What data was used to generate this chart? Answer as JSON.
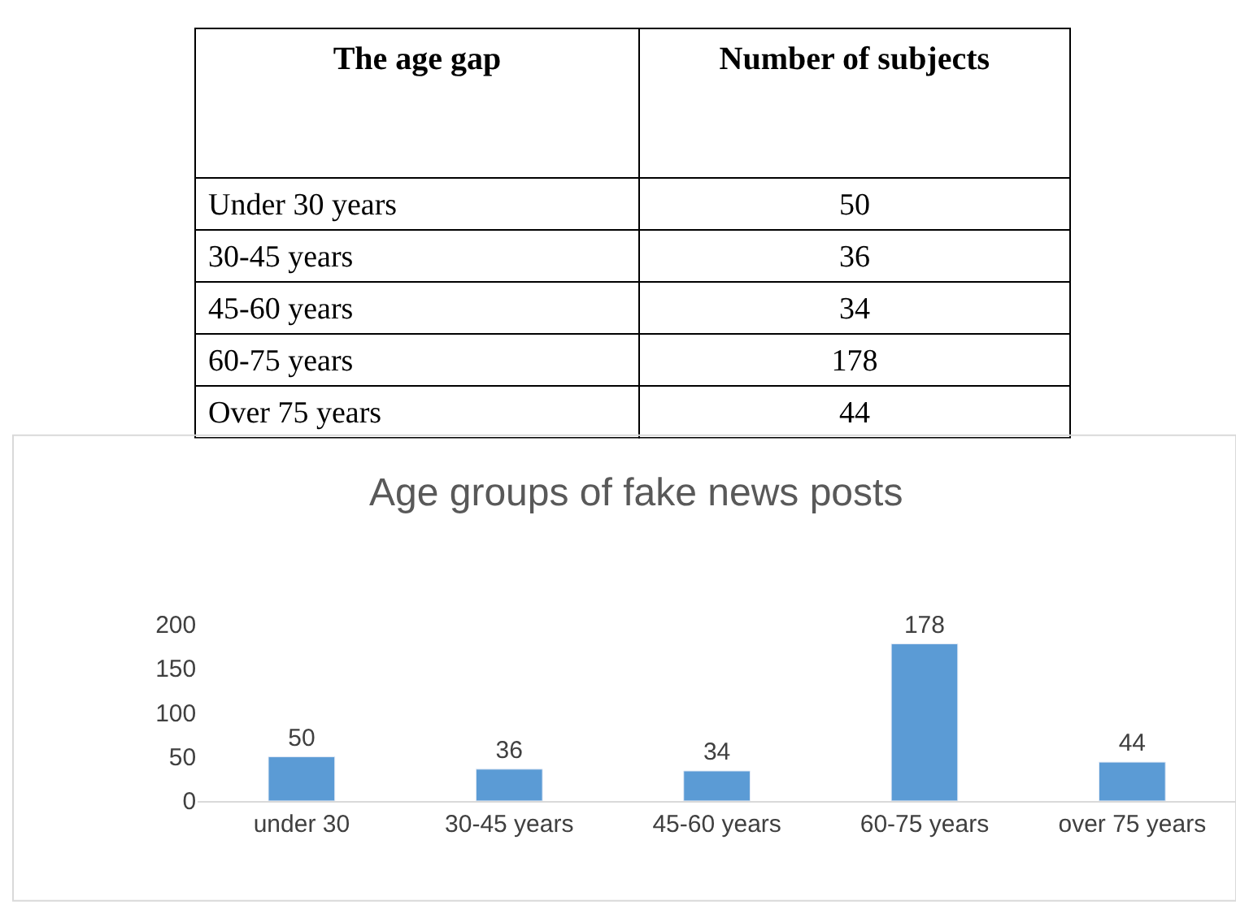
{
  "chart_data": [
    {
      "type": "other",
      "annotations": [
        "The age gap",
        "Number of subjects",
        "Under 30 years",
        "50",
        "30-45 years",
        "36",
        "45-60 years",
        "34",
        "60-75 years",
        "178",
        "Over 75 years",
        "44"
      ]
    },
    {
      "type": "bar",
      "title": "Age groups of fake news posts",
      "categories": [
        "under 30",
        "30-45 years",
        "45-60 years",
        "60-75 years",
        "over 75 years"
      ],
      "values": [
        50,
        36,
        34,
        178,
        44
      ],
      "color": "#5b9bd5",
      "ylim": [
        0,
        200
      ],
      "yticks": [
        0,
        50,
        100,
        150,
        200
      ],
      "data_labels": true
    }
  ]
}
